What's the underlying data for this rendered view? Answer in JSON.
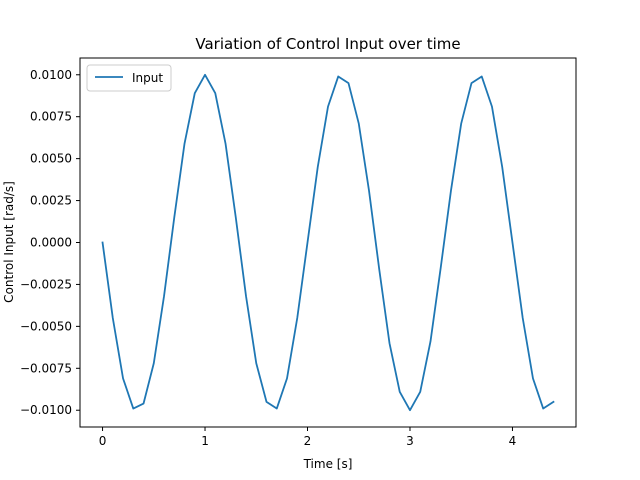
{
  "chart_data": {
    "type": "line",
    "title": "Variation of Control Input over time",
    "xlabel": "Time [s]",
    "ylabel": "Control Input [rad/s]",
    "xlim": [
      -0.22,
      4.62
    ],
    "ylim": [
      -0.011,
      0.011
    ],
    "xticks": [
      0,
      1,
      2,
      3,
      4
    ],
    "xtick_labels": [
      "0",
      "1",
      "2",
      "3",
      "4"
    ],
    "yticks": [
      -0.01,
      -0.0075,
      -0.005,
      -0.0025,
      0.0,
      0.0025,
      0.005,
      0.0075,
      0.01
    ],
    "ytick_labels": [
      "−0.0100",
      "−0.0075",
      "−0.0050",
      "−0.0025",
      "0.0000",
      "0.0025",
      "0.0050",
      "0.0075",
      "0.0100"
    ],
    "grid": false,
    "legend_position": "top-left",
    "series": [
      {
        "name": "Input",
        "color": "#1f77b4",
        "x": [
          0.0,
          0.1,
          0.2,
          0.3,
          0.4,
          0.5,
          0.6,
          0.7,
          0.8,
          0.9,
          1.0,
          1.1,
          1.2,
          1.3,
          1.4,
          1.5,
          1.6,
          1.7,
          1.8,
          1.9,
          2.0,
          2.1,
          2.2,
          2.3,
          2.4,
          2.5,
          2.6,
          2.7,
          2.8,
          2.9,
          3.0,
          3.1,
          3.2,
          3.3,
          3.4,
          3.5,
          3.6,
          3.7,
          3.8,
          3.9,
          4.0,
          4.1,
          4.2,
          4.3,
          4.4
        ],
        "y": [
          0.0,
          -0.0045,
          -0.0081,
          -0.0099,
          -0.0096,
          -0.0072,
          -0.0032,
          0.0015,
          0.0059,
          0.0089,
          0.01,
          0.0089,
          0.0059,
          0.0015,
          -0.0032,
          -0.0072,
          -0.0095,
          -0.0099,
          -0.0081,
          -0.0045,
          0.0,
          0.0045,
          0.0081,
          0.0099,
          0.0095,
          0.0071,
          0.0031,
          -0.0016,
          -0.006,
          -0.0089,
          -0.01,
          -0.0089,
          -0.0059,
          -0.0015,
          0.0031,
          0.0071,
          0.0095,
          0.0099,
          0.0081,
          0.0045,
          0.0,
          -0.0045,
          -0.0081,
          -0.0099,
          -0.0095
        ]
      }
    ]
  }
}
